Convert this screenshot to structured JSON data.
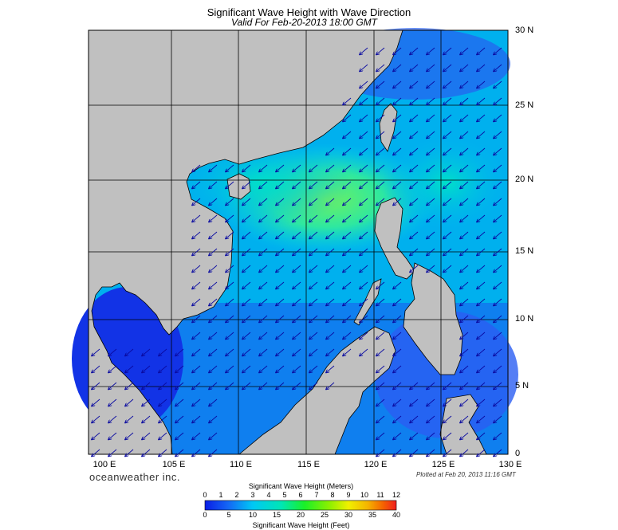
{
  "title": "Significant Wave Height with Wave Direction",
  "subtitle": "Valid For Feb-20-2013 18:00 GMT",
  "lat_labels": [
    "30 N",
    "25 N",
    "20 N",
    "15 N",
    "10 N",
    "5 N",
    "0"
  ],
  "lon_labels": [
    "100 E",
    "105 E",
    "110 E",
    "115 E",
    "120 E",
    "125 E",
    "130 E"
  ],
  "brand": "oceanweather inc.",
  "plotted": "Plotted at Feb 20, 2013 11:16 GMT",
  "colorbar": {
    "meters_title": "Significant Wave Height (Meters)",
    "feet_title": "Significant Wave Height (Feet)",
    "meters_ticks": [
      "0",
      "1",
      "2",
      "3",
      "4",
      "5",
      "6",
      "7",
      "8",
      "9",
      "10",
      "11",
      "12"
    ],
    "feet_ticks": [
      "0",
      "5",
      "10",
      "15",
      "20",
      "25",
      "30",
      "35",
      "40"
    ]
  },
  "colors": {
    "land": "#c0c0c0",
    "ocean_low": "#1a40e6",
    "ocean_mid": "#00c8f0",
    "ocean_high": "#30e89a",
    "arrow": "#0a0aa0"
  }
}
